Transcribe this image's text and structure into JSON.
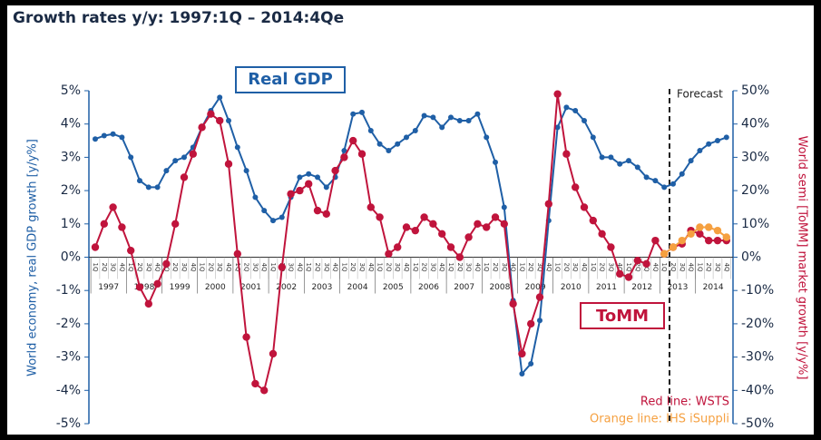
{
  "chart_data": {
    "type": "line",
    "title": "Growth rates y/y: 1997:1Q – 2014:4Qe",
    "y_label": "World economy, real GDP growth [y/y%]",
    "y2_label": "World semi [ToMM] market growth [y/y%]",
    "annotations": [
      "ToMM",
      "Forecast"
    ],
    "years": [
      "1997",
      "1998",
      "1999",
      "2000",
      "2001",
      "2002",
      "2003",
      "2004",
      "2005",
      "2006",
      "2007",
      "2008",
      "2009",
      "2010",
      "2011",
      "2012",
      "2013",
      "2014"
    ],
    "categories": [
      "1Q",
      "2Q",
      "3Q",
      "4Q",
      "1Q",
      "2Q",
      "3Q",
      "4Q",
      "1Q",
      "2Q",
      "3Q",
      "4Q",
      "1Q",
      "2Q",
      "3Q",
      "4Q",
      "1Q",
      "2Q",
      "3Q",
      "4Q",
      "1Q",
      "2Q",
      "3Q",
      "4Q",
      "1Q",
      "2Q",
      "3Q",
      "4Q",
      "1Q",
      "2Q",
      "3Q",
      "4Q",
      "1Q",
      "2Q",
      "3Q",
      "4Q",
      "1Q",
      "2Q",
      "3Q",
      "4Q",
      "1Q",
      "2Q",
      "3Q",
      "4Q",
      "1Q",
      "2Q",
      "3Q",
      "4Q",
      "1Q",
      "2Q",
      "3Q",
      "4Q",
      "1Q",
      "2Q",
      "3Q",
      "4Q",
      "1Q",
      "2Q",
      "3Q",
      "4Q",
      "1Q",
      "2Q",
      "3Q",
      "4Q",
      "1Q",
      "2Q",
      "3Q",
      "4Q",
      "1Q",
      "2Q",
      "3Q",
      "4Q"
    ],
    "series": [
      {
        "name": "Real GDP",
        "color": "#1f5fa6",
        "values": [
          3.55,
          3.65,
          3.7,
          3.6,
          3.0,
          2.3,
          2.1,
          2.1,
          2.6,
          2.9,
          3.0,
          3.3,
          3.9,
          4.4,
          4.8,
          4.1,
          3.3,
          2.6,
          1.8,
          1.4,
          1.1,
          1.2,
          1.8,
          2.4,
          2.5,
          2.4,
          2.1,
          2.4,
          3.2,
          4.3,
          4.35,
          3.8,
          3.4,
          3.2,
          3.4,
          3.6,
          3.8,
          4.25,
          4.2,
          3.9,
          4.2,
          4.1,
          4.1,
          4.3,
          3.6,
          2.85,
          1.5,
          -1.3,
          -3.5,
          -3.2,
          -1.9,
          1.1,
          3.9,
          4.5,
          4.4,
          4.1,
          3.6,
          3.0,
          3.0,
          2.8,
          2.9,
          2.7,
          2.4,
          2.3,
          2.1,
          2.2,
          2.5,
          2.9,
          3.2,
          3.4,
          3.5,
          3.6
        ]
      },
      {
        "name": "Red line: WSTS",
        "color": "#c0143c",
        "axis": "y2",
        "values": [
          3,
          10,
          15,
          9,
          2,
          -9,
          -14,
          -8,
          -2,
          10,
          24,
          31,
          39,
          43,
          41,
          28,
          1,
          -24,
          -38,
          -40,
          -29,
          -3,
          19,
          20,
          22,
          14,
          13,
          26,
          30,
          35,
          31,
          15,
          12,
          1,
          3,
          9,
          8,
          12,
          10,
          7,
          3,
          0,
          6,
          10,
          9,
          12,
          10,
          -14,
          -29,
          -20,
          -12,
          16,
          49,
          31,
          21,
          15,
          11,
          7,
          3,
          -5,
          -6,
          -1,
          -2,
          5,
          1,
          3,
          4,
          8,
          7,
          5,
          5,
          5
        ]
      },
      {
        "name": "Orange line: IHS iSuppli",
        "color": "#f5a040",
        "axis": "y2",
        "values": [
          null,
          null,
          null,
          null,
          null,
          null,
          null,
          null,
          null,
          null,
          null,
          null,
          null,
          null,
          null,
          null,
          null,
          null,
          null,
          null,
          null,
          null,
          null,
          null,
          null,
          null,
          null,
          null,
          null,
          null,
          null,
          null,
          null,
          null,
          null,
          null,
          null,
          null,
          null,
          null,
          null,
          null,
          null,
          null,
          null,
          null,
          null,
          null,
          null,
          null,
          null,
          null,
          null,
          null,
          null,
          null,
          null,
          null,
          null,
          null,
          null,
          null,
          null,
          null,
          1,
          3,
          5,
          7,
          9,
          9,
          8,
          6
        ]
      }
    ],
    "ylim": [
      -5,
      5
    ],
    "yticks": [
      {
        "value": -5,
        "label": "-5%"
      },
      {
        "value": -4,
        "label": "-4%"
      },
      {
        "value": -3,
        "label": "-3%"
      },
      {
        "value": -2,
        "label": "-2%"
      },
      {
        "value": -1,
        "label": "-1%"
      },
      {
        "value": 0,
        "label": "0%"
      },
      {
        "value": 1,
        "label": "1%"
      },
      {
        "value": 2,
        "label": "2%"
      },
      {
        "value": 3,
        "label": "3%"
      },
      {
        "value": 4,
        "label": "4%"
      },
      {
        "value": 5,
        "label": "5%"
      }
    ],
    "y2lim": [
      -50,
      50
    ],
    "y2ticks": [
      {
        "value": -50,
        "label": "-50%"
      },
      {
        "value": -40,
        "label": "-40%"
      },
      {
        "value": -30,
        "label": "-30%"
      },
      {
        "value": -20,
        "label": "-20%"
      },
      {
        "value": -10,
        "label": "-10%"
      },
      {
        "value": 0,
        "label": "0%"
      },
      {
        "value": 10,
        "label": "10%"
      },
      {
        "value": 20,
        "label": "20%"
      },
      {
        "value": 30,
        "label": "30%"
      },
      {
        "value": 40,
        "label": "40%"
      },
      {
        "value": 50,
        "label": "50%"
      }
    ]
  }
}
